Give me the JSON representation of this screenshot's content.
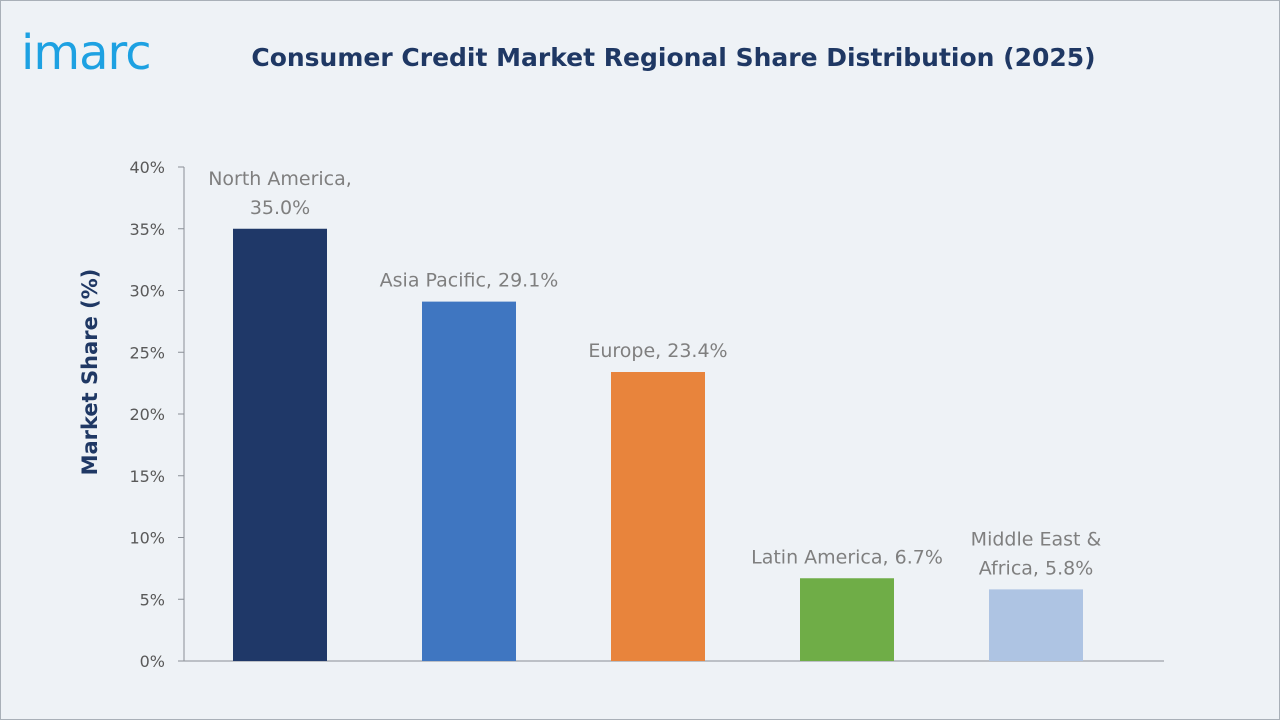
{
  "header": {
    "logo_text": "imarc",
    "title": "Consumer Credit Market Regional Share Distribution (2025)"
  },
  "chart_data": {
    "type": "bar",
    "title": "Consumer Credit Market Regional Share Distribution (2025)",
    "xlabel": "",
    "ylabel": "Market Share (%)",
    "ylim": [
      0,
      40
    ],
    "yticks": [
      "0%",
      "5%",
      "10%",
      "15%",
      "20%",
      "25%",
      "30%",
      "35%",
      "40%"
    ],
    "categories": [
      "North America",
      "Asia Pacific",
      "Europe",
      "Latin America",
      "Middle East & Africa"
    ],
    "values": [
      35.0,
      29.1,
      23.4,
      6.7,
      5.8
    ],
    "data_labels": [
      [
        "North America,",
        "35.0%"
      ],
      [
        "Asia Pacific, 29.1%"
      ],
      [
        "Europe, 23.4%"
      ],
      [
        "Latin America, 6.7%"
      ],
      [
        "Middle East &",
        "Africa, 5.8%"
      ]
    ],
    "colors": [
      "#1f3868",
      "#3f76c1",
      "#e8843c",
      "#6fad47",
      "#aec4e3"
    ],
    "grid": false,
    "legend": "none"
  }
}
